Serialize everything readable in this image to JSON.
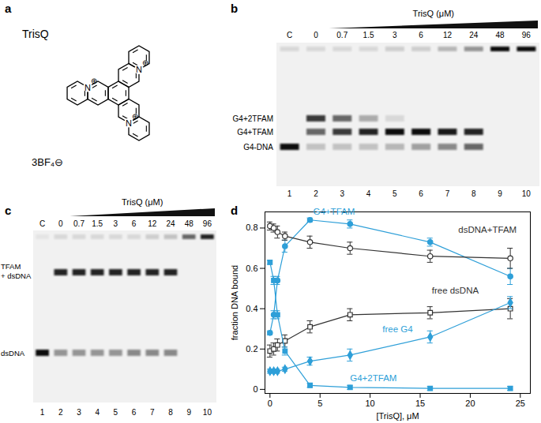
{
  "panel_labels": [
    "a",
    "b",
    "c",
    "d"
  ],
  "structure": {
    "name": "TrisQ",
    "counterion": "3BF₄⊖",
    "atom": "N",
    "charge": "⊕"
  },
  "gels": [
    {
      "title": "TrisQ (μM)",
      "lanes": [
        "C",
        "0",
        "0.7",
        "1.5",
        "3",
        "6",
        "12",
        "24",
        "48",
        "96"
      ],
      "lane_numbers": [
        1,
        2,
        3,
        4,
        5,
        6,
        7,
        8,
        9,
        10
      ],
      "well": [
        0.1,
        0.1,
        0.1,
        0.1,
        0.15,
        0.15,
        0.25,
        0.4,
        1,
        1
      ],
      "bands": [
        {
          "label": [
            "G4+2TFAM"
          ],
          "intensity": [
            0,
            0.8,
            0.6,
            0.3,
            0.1,
            0,
            0,
            0,
            0,
            0
          ]
        },
        {
          "label": [
            "G4+TFAM"
          ],
          "intensity": [
            0,
            0.6,
            0.8,
            0.9,
            1,
            1,
            0.95,
            0.9,
            0,
            0
          ]
        },
        {
          "label": [
            "G4-DNA"
          ],
          "intensity": [
            1,
            0.2,
            0.2,
            0.2,
            0.25,
            0.35,
            0.45,
            0.6,
            0,
            0
          ]
        }
      ]
    },
    {
      "title": "TrisQ (μM)",
      "lanes": [
        "C",
        "0",
        "0.7",
        "1.5",
        "3",
        "6",
        "12",
        "24",
        "48",
        "96"
      ],
      "lane_numbers": [
        1,
        2,
        3,
        4,
        5,
        6,
        7,
        8,
        9,
        10
      ],
      "well": [
        0.05,
        0.1,
        0.1,
        0.1,
        0.1,
        0.1,
        0.15,
        0.2,
        0.6,
        0.9
      ],
      "bands": [
        {
          "label": [
            "TFAM",
            "+ dsDNA"
          ],
          "intensity": [
            0,
            0.9,
            0.9,
            0.9,
            0.9,
            0.9,
            0.9,
            0.9,
            0,
            0
          ]
        },
        {
          "label": [
            "dsDNA"
          ],
          "intensity": [
            1,
            0.4,
            0.4,
            0.4,
            0.4,
            0.45,
            0.45,
            0.45,
            0,
            0
          ]
        }
      ]
    }
  ],
  "chart_data": {
    "type": "line",
    "x_label": "[TrisQ], μM",
    "y_label": "fraction DNA bound",
    "x": [
      0,
      0.375,
      0.75,
      1.5,
      4,
      8,
      16,
      24
    ],
    "xlim": [
      -0.5,
      26
    ],
    "xticks": [
      0,
      5,
      10,
      15,
      20,
      25
    ],
    "ylim": [
      -0.02,
      0.88
    ],
    "yticks": [
      0,
      0.2,
      0.4,
      0.6,
      0.8
    ],
    "series": [
      {
        "name": "G4+TFAM",
        "color": "#2e9fd8",
        "marker": "circle",
        "line_style": "solid",
        "values": [
          0.28,
          0.37,
          0.54,
          0.71,
          0.84,
          0.82,
          0.73,
          0.56
        ],
        "errors": [
          0.01,
          0.02,
          0.02,
          0.03,
          0.01,
          0.02,
          0.02,
          0.04
        ]
      },
      {
        "name": "dsDNA+TFAM",
        "color": "#333333",
        "marker": "circle-open",
        "line_style": "solid",
        "values": [
          0.81,
          0.8,
          0.78,
          0.76,
          0.73,
          0.7,
          0.66,
          0.65
        ],
        "errors": [
          0.02,
          0.02,
          0.03,
          0.02,
          0.03,
          0.03,
          0.03,
          0.05
        ]
      },
      {
        "name": "free dsDNA",
        "color": "#333333",
        "marker": "square-open",
        "line_style": "solid",
        "values": [
          0.19,
          0.2,
          0.22,
          0.24,
          0.31,
          0.37,
          0.38,
          0.4
        ],
        "errors": [
          0.03,
          0.03,
          0.03,
          0.03,
          0.03,
          0.03,
          0.03,
          0.05
        ]
      },
      {
        "name": "free G4",
        "color": "#2e9fd8",
        "marker": "diamond",
        "line_style": "solid",
        "values": [
          0.09,
          0.09,
          0.09,
          0.1,
          0.14,
          0.17,
          0.26,
          0.43
        ],
        "errors": [
          0.01,
          0.01,
          0.01,
          0.01,
          0.02,
          0.03,
          0.03,
          0.03
        ]
      },
      {
        "name": "G4+2TFAM",
        "color": "#2e9fd8",
        "marker": "square",
        "line_style": "solid",
        "values": [
          0.63,
          0.54,
          0.37,
          0.19,
          0.02,
          0.01,
          0.005,
          0.005
        ],
        "errors": [
          0.01,
          0.02,
          0.02,
          0.02,
          0.01,
          0.01,
          0.01,
          0.01
        ]
      }
    ]
  }
}
